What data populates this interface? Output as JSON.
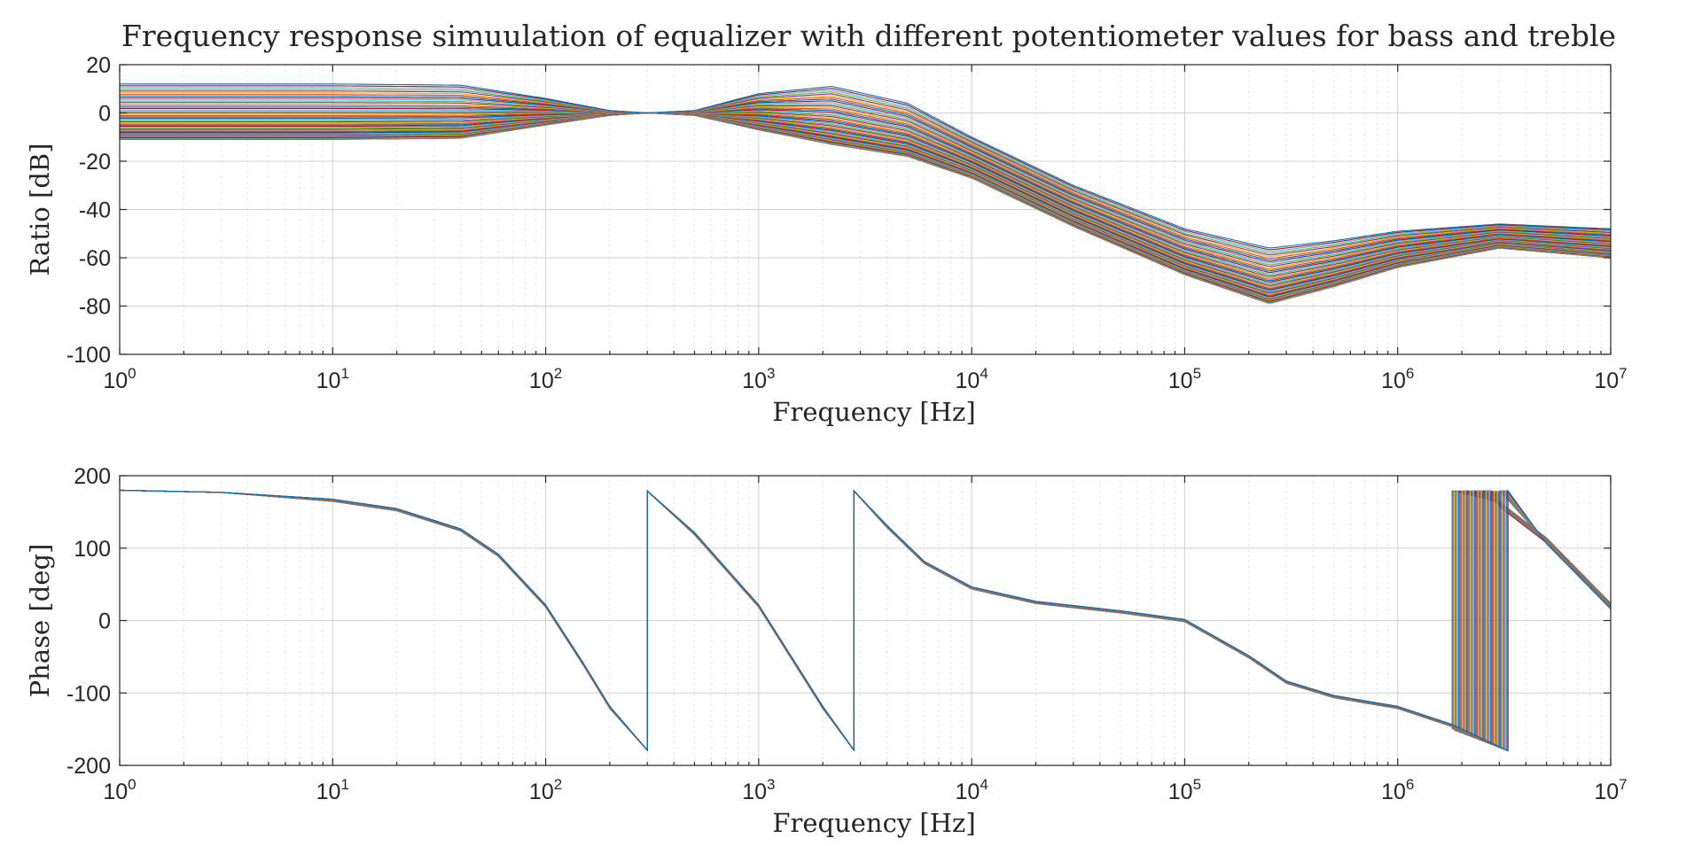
{
  "figure": {
    "title": "Frequency response simuulation of equalizer with different potentiometer values for bass and treble"
  },
  "chart_data": [
    {
      "type": "line",
      "xscale": "log",
      "xlabel": "Frequency [Hz]",
      "ylabel": "Ratio [dB]",
      "xlim": [
        1,
        10000000
      ],
      "ylim": [
        -100,
        20
      ],
      "xticks": [
        1,
        10,
        100,
        1000,
        10000,
        100000,
        1000000,
        10000000
      ],
      "xtick_labels": [
        {
          "base": "10",
          "exp": "0"
        },
        {
          "base": "10",
          "exp": "1"
        },
        {
          "base": "10",
          "exp": "2"
        },
        {
          "base": "10",
          "exp": "3"
        },
        {
          "base": "10",
          "exp": "4"
        },
        {
          "base": "10",
          "exp": "5"
        },
        {
          "base": "10",
          "exp": "6"
        },
        {
          "base": "10",
          "exp": "7"
        }
      ],
      "yticks": [
        -100,
        -80,
        -60,
        -40,
        -20,
        0,
        20
      ],
      "ytick_labels": [
        "-100",
        "-80",
        "-60",
        "-40",
        "-20",
        "0",
        "20"
      ],
      "grid": true,
      "series_count": 50,
      "series_note": "family of 50 curves, one per potentiometer setting",
      "envelope": {
        "x": [
          1,
          10,
          40,
          100,
          200,
          300,
          500,
          1000,
          2200,
          5000,
          10000,
          30000,
          100000,
          250000,
          500000,
          1000000,
          3000000,
          10000000
        ],
        "upper": [
          12,
          12,
          11.5,
          6,
          1,
          0,
          1,
          8,
          11,
          4,
          -10,
          -30,
          -48,
          -56,
          -53,
          -49,
          -46,
          -48
        ],
        "lower": [
          -11,
          -11,
          -10.5,
          -5,
          -1,
          0,
          -1,
          -7,
          -13,
          -18,
          -27,
          -47,
          -67,
          -79,
          -72,
          -64,
          -56,
          -60
        ]
      },
      "colors": [
        "#0072BD",
        "#D95319",
        "#EDB120",
        "#7E2F8E",
        "#77AC30",
        "#4DBEEE",
        "#A2142F"
      ]
    },
    {
      "type": "line",
      "xscale": "log",
      "xlabel": "Frequency [Hz]",
      "ylabel": "Phase [deg]",
      "xlim": [
        1,
        10000000
      ],
      "ylim": [
        -200,
        200
      ],
      "xticks": [
        1,
        10,
        100,
        1000,
        10000,
        100000,
        1000000,
        10000000
      ],
      "xtick_labels": [
        {
          "base": "10",
          "exp": "0"
        },
        {
          "base": "10",
          "exp": "1"
        },
        {
          "base": "10",
          "exp": "2"
        },
        {
          "base": "10",
          "exp": "3"
        },
        {
          "base": "10",
          "exp": "4"
        },
        {
          "base": "10",
          "exp": "5"
        },
        {
          "base": "10",
          "exp": "6"
        },
        {
          "base": "10",
          "exp": "7"
        }
      ],
      "yticks": [
        -200,
        -100,
        0,
        100,
        200
      ],
      "ytick_labels": [
        "-200",
        "-100",
        "0",
        "100",
        "200"
      ],
      "grid": true,
      "series_count": 50,
      "phase_trace": {
        "x": [
          1,
          3,
          10,
          20,
          40,
          60,
          100,
          150,
          200,
          300,
          300,
          500,
          1000,
          2000,
          2800,
          2800,
          4000,
          6000,
          10000,
          20000,
          50000,
          100000,
          200000,
          300000,
          500000,
          1000000,
          1800000
        ],
        "y": [
          180,
          177,
          166,
          153,
          125,
          90,
          20,
          -60,
          -120,
          -179,
          179,
          120,
          20,
          -120,
          -179,
          179,
          130,
          80,
          45,
          25,
          12,
          0,
          -50,
          -85,
          -105,
          -120,
          -145
        ],
        "wrap_x_range": [
          1800000,
          3300000
        ],
        "post_wrap_x": [
          1800000,
          3000000,
          5000000,
          10000000
        ],
        "post_wrap_y": [
          178,
          160,
          110,
          20
        ]
      },
      "colors": [
        "#0072BD",
        "#D95319",
        "#EDB120",
        "#7E2F8E",
        "#77AC30",
        "#4DBEEE",
        "#A2142F"
      ]
    }
  ]
}
